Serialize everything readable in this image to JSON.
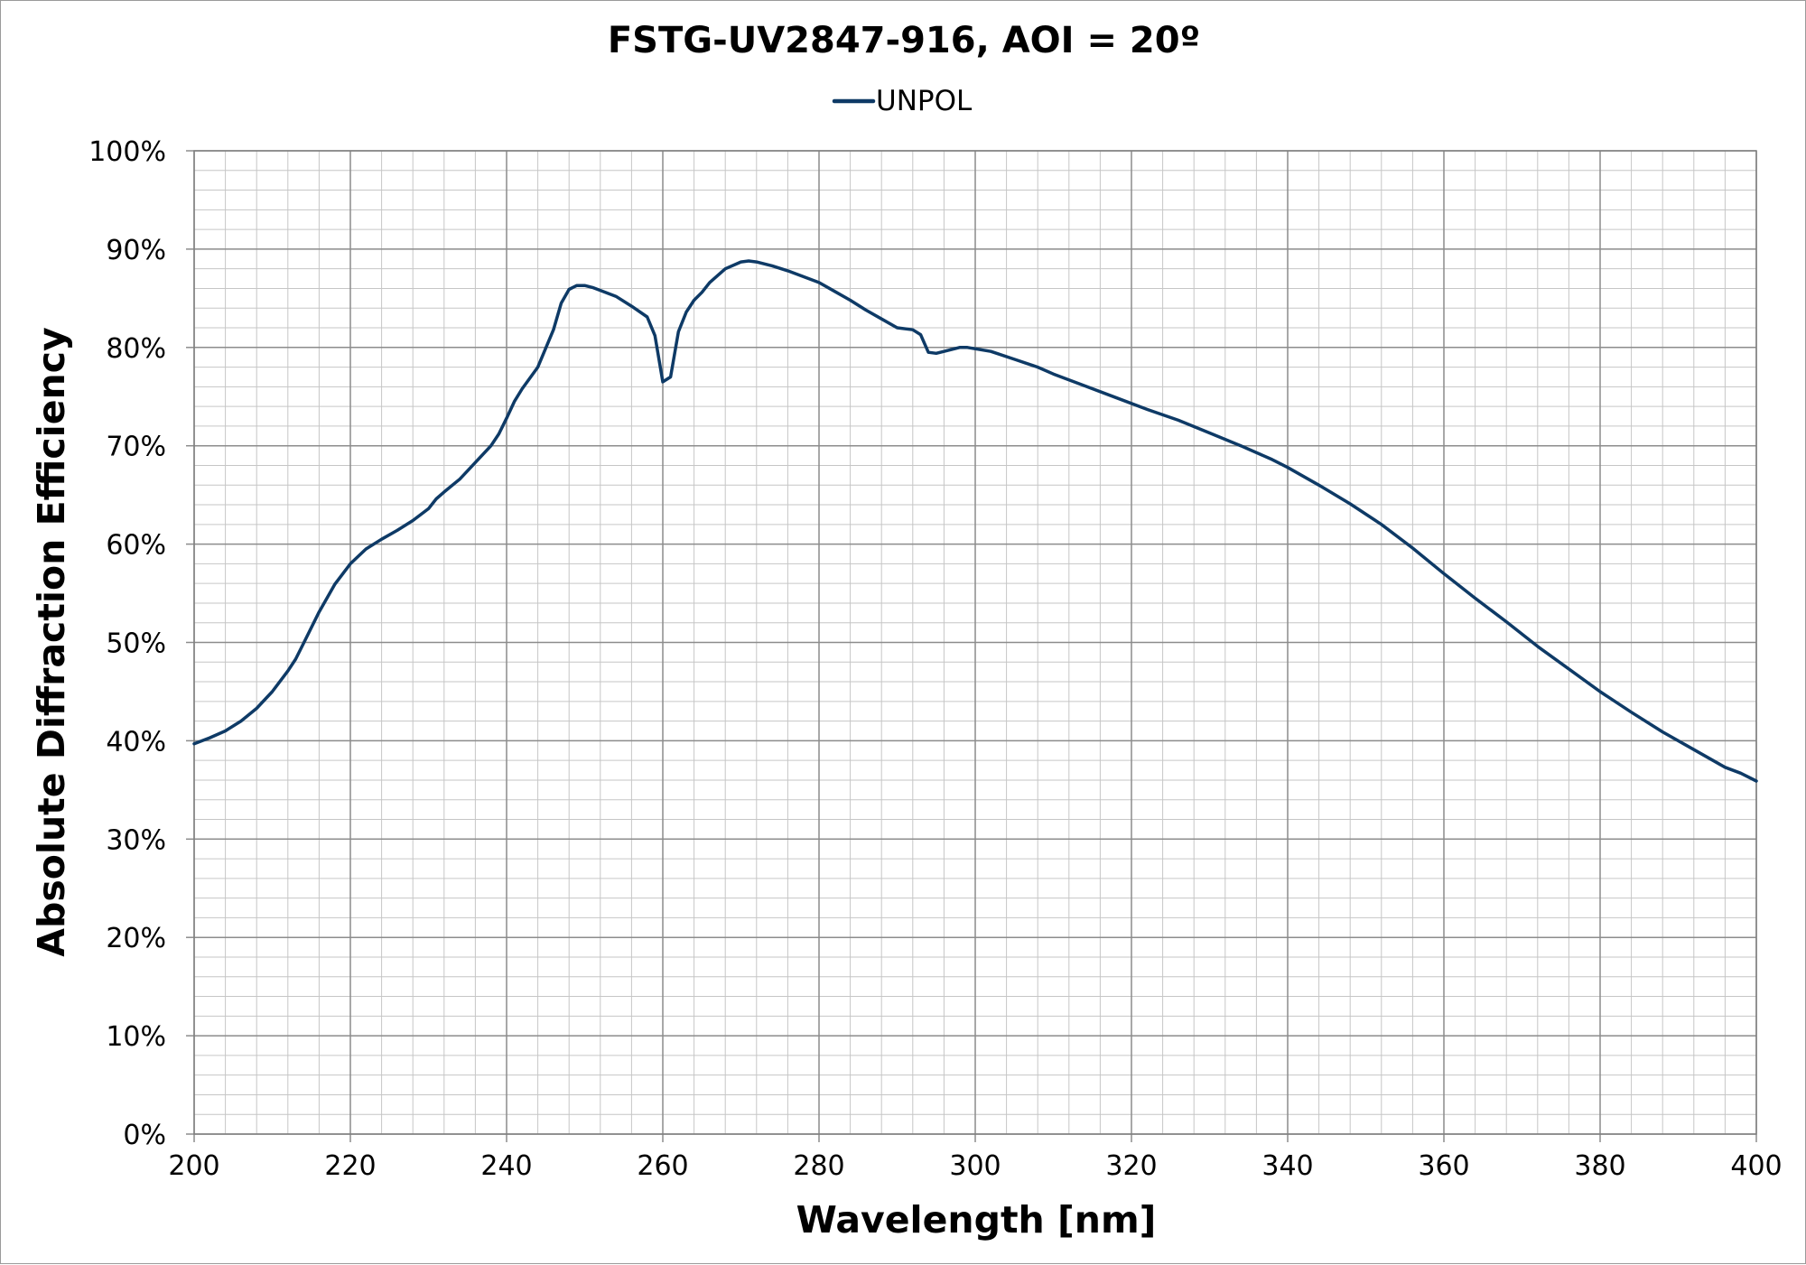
{
  "chart_data": {
    "type": "line",
    "title": "FSTG-UV2847-916, AOI = 20º",
    "xlabel": "Wavelength [nm]",
    "ylabel": "Absolute Diffraction Efficiency",
    "xlim": [
      200,
      400
    ],
    "ylim": [
      0,
      100
    ],
    "x_ticks": [
      200,
      220,
      240,
      260,
      280,
      300,
      320,
      340,
      360,
      380,
      400
    ],
    "x_tick_labels": [
      "200",
      "220",
      "240",
      "260",
      "280",
      "300",
      "320",
      "340",
      "360",
      "380",
      "400"
    ],
    "y_ticks": [
      0,
      10,
      20,
      30,
      40,
      50,
      60,
      70,
      80,
      90,
      100
    ],
    "y_tick_labels": [
      "0%",
      "10%",
      "20%",
      "30%",
      "40%",
      "50%",
      "60%",
      "70%",
      "80%",
      "90%",
      "100%"
    ],
    "grid": true,
    "legend_position": "top-center",
    "series": [
      {
        "name": "UNPOL",
        "color": "#0e3a66",
        "x": [
          200,
          202,
          204,
          206,
          208,
          210,
          212,
          213,
          214,
          216,
          218,
          220,
          222,
          224,
          226,
          228,
          230,
          231,
          232,
          234,
          236,
          238,
          239,
          240,
          241,
          242,
          244,
          246,
          247,
          248,
          249,
          250,
          251,
          252,
          254,
          256,
          258,
          259,
          260,
          261,
          262,
          263,
          264,
          265,
          266,
          268,
          270,
          271,
          272,
          274,
          276,
          278,
          280,
          282,
          284,
          286,
          288,
          290,
          292,
          293,
          294,
          295,
          296,
          298,
          299,
          302,
          305,
          308,
          310,
          314,
          318,
          322,
          326,
          330,
          334,
          338,
          340,
          344,
          348,
          352,
          356,
          360,
          364,
          368,
          372,
          376,
          380,
          384,
          388,
          392,
          396,
          398,
          400
        ],
        "y": [
          39.7,
          40.3,
          41.0,
          42.0,
          43.3,
          45.0,
          47.1,
          48.3,
          49.9,
          53.1,
          55.9,
          58.0,
          59.5,
          60.5,
          61.4,
          62.4,
          63.6,
          64.6,
          65.3,
          66.6,
          68.3,
          70.0,
          71.2,
          72.8,
          74.5,
          75.8,
          78.0,
          81.8,
          84.5,
          85.9,
          86.3,
          86.3,
          86.1,
          85.8,
          85.2,
          84.2,
          83.1,
          81.2,
          76.5,
          77.0,
          81.6,
          83.6,
          84.8,
          85.6,
          86.6,
          88.0,
          88.7,
          88.8,
          88.7,
          88.3,
          87.8,
          87.2,
          86.6,
          85.7,
          84.8,
          83.8,
          82.9,
          82.0,
          81.8,
          81.3,
          79.5,
          79.4,
          79.6,
          80.0,
          80.0,
          79.6,
          78.8,
          78.0,
          77.3,
          76.1,
          74.9,
          73.7,
          72.6,
          71.3,
          70.0,
          68.6,
          67.8,
          66.0,
          64.1,
          62.0,
          59.6,
          57.0,
          54.5,
          52.1,
          49.6,
          47.3,
          45.0,
          42.9,
          40.9,
          39.1,
          37.3,
          36.7,
          35.9
        ]
      }
    ]
  }
}
